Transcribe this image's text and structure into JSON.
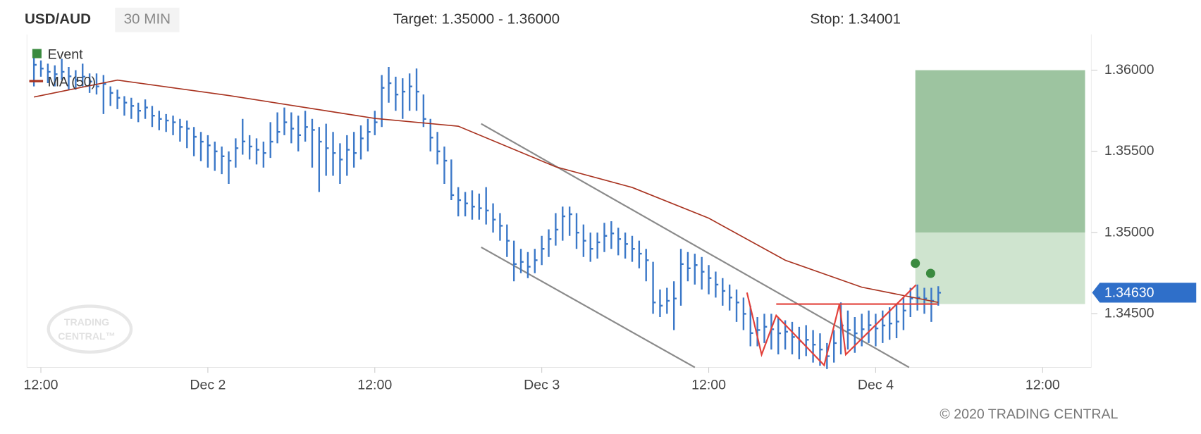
{
  "chart_data": {
    "type": "ohlc",
    "title": "USD/AUD",
    "interval": "30 MIN",
    "target": "Target: 1.35000 - 1.36000",
    "stop": "Stop: 1.34001",
    "copyright": "© 2020 TRADING CENTRAL",
    "watermark": [
      "TRADING",
      "CENTRAL™"
    ],
    "legend": "top-left",
    "grid": false,
    "xlim": [
      -1,
      152
    ],
    "xticks": [
      {
        "value": 1,
        "label": "12:00"
      },
      {
        "value": 25,
        "label": "Dec 2"
      },
      {
        "value": 49,
        "label": "12:00"
      },
      {
        "value": 73,
        "label": "Dec 3"
      },
      {
        "value": 97,
        "label": "12:00"
      },
      {
        "value": 121,
        "label": "Dec 4"
      },
      {
        "value": 145,
        "label": "12:00"
      }
    ],
    "ylim": [
      1.3417,
      1.3622
    ],
    "yticks": [
      {
        "value": 1.36,
        "label": "1.36000"
      },
      {
        "value": 1.355,
        "label": "1.35500"
      },
      {
        "value": 1.35,
        "label": "1.35000"
      },
      {
        "value": 1.345,
        "label": "1.34500"
      }
    ],
    "bars": {
      "color": "#3b78c8",
      "high": [
        1.361,
        1.3606,
        1.3604,
        1.3603,
        1.3607,
        1.3602,
        1.36,
        1.3604,
        1.3598,
        1.3598,
        1.3597,
        1.359,
        1.3588,
        1.3584,
        1.3583,
        1.358,
        1.3582,
        1.3578,
        1.3575,
        1.3573,
        1.3572,
        1.357,
        1.3569,
        1.3565,
        1.3562,
        1.356,
        1.3556,
        1.3553,
        1.355,
        1.3558,
        1.357,
        1.356,
        1.3558,
        1.3556,
        1.3568,
        1.3574,
        1.3577,
        1.3574,
        1.3572,
        1.3575,
        1.357,
        1.3565,
        1.3567,
        1.3562,
        1.3555,
        1.356,
        1.3562,
        1.3566,
        1.357,
        1.3575,
        1.3597,
        1.3602,
        1.3596,
        1.3595,
        1.3598,
        1.3601,
        1.3585,
        1.357,
        1.3562,
        1.3553,
        1.3545,
        1.3528,
        1.3525,
        1.3526,
        1.3524,
        1.3528,
        1.3518,
        1.3512,
        1.3505,
        1.3495,
        1.349,
        1.3488,
        1.349,
        1.3498,
        1.3502,
        1.3512,
        1.3516,
        1.3516,
        1.3512,
        1.3505,
        1.35,
        1.35,
        1.3506,
        1.3507,
        1.3503,
        1.35,
        1.3498,
        1.3495,
        1.349,
        1.3482,
        1.3465,
        1.3466,
        1.347,
        1.349,
        1.3488,
        1.3487,
        1.3485,
        1.348,
        1.3476,
        1.3472,
        1.3468,
        1.3465,
        1.346,
        1.3455,
        1.3448,
        1.345,
        1.345,
        1.3448,
        1.3446,
        1.3445,
        1.3442,
        1.3443,
        1.344,
        1.3438,
        1.3432,
        1.344,
        1.3457,
        1.3452,
        1.3448,
        1.345,
        1.3452,
        1.345,
        1.3452,
        1.3454,
        1.3456,
        1.346,
        1.3466,
        1.3468,
        1.3466,
        1.3466,
        1.3467
      ],
      "low": [
        1.359,
        1.3596,
        1.3592,
        1.359,
        1.3594,
        1.3588,
        1.3588,
        1.359,
        1.3586,
        1.3585,
        1.3573,
        1.3578,
        1.3576,
        1.3572,
        1.357,
        1.3568,
        1.357,
        1.3565,
        1.3563,
        1.3562,
        1.356,
        1.3556,
        1.3552,
        1.3547,
        1.3544,
        1.354,
        1.3538,
        1.3536,
        1.353,
        1.354,
        1.3548,
        1.3545,
        1.3542,
        1.354,
        1.3546,
        1.3555,
        1.356,
        1.3555,
        1.355,
        1.3556,
        1.354,
        1.3525,
        1.3535,
        1.3535,
        1.353,
        1.3535,
        1.354,
        1.3545,
        1.355,
        1.356,
        1.3565,
        1.358,
        1.3575,
        1.357,
        1.3575,
        1.3575,
        1.3565,
        1.355,
        1.3542,
        1.353,
        1.352,
        1.351,
        1.351,
        1.3508,
        1.3508,
        1.3505,
        1.35,
        1.3495,
        1.3485,
        1.347,
        1.3475,
        1.3472,
        1.3475,
        1.348,
        1.3485,
        1.3492,
        1.3495,
        1.3498,
        1.349,
        1.3485,
        1.3482,
        1.3484,
        1.3488,
        1.349,
        1.3486,
        1.3484,
        1.3482,
        1.3478,
        1.347,
        1.345,
        1.3448,
        1.345,
        1.344,
        1.3455,
        1.347,
        1.3468,
        1.3465,
        1.3462,
        1.346,
        1.3455,
        1.3452,
        1.3445,
        1.344,
        1.343,
        1.343,
        1.3432,
        1.3428,
        1.3425,
        1.3428,
        1.3425,
        1.3422,
        1.3424,
        1.342,
        1.3418,
        1.3416,
        1.342,
        1.3425,
        1.3428,
        1.3426,
        1.343,
        1.3432,
        1.343,
        1.3432,
        1.3434,
        1.3435,
        1.344,
        1.3448,
        1.3452,
        1.345,
        1.3445,
        1.3455
      ],
      "close": [
        1.36033,
        1.3601,
        1.3599,
        1.35975,
        1.3599,
        1.35962,
        1.3594,
        1.3596,
        1.3593,
        1.359,
        1.35915,
        1.3586,
        1.3583,
        1.358,
        1.3578,
        1.3575,
        1.3577,
        1.3572,
        1.357,
        1.3569,
        1.35679,
        1.3565,
        1.3564,
        1.3559,
        1.3556,
        1.35537,
        1.355,
        1.3547,
        1.35443,
        1.3552,
        1.35561,
        1.3553,
        1.3551,
        1.3549,
        1.3556,
        1.3562,
        1.35679,
        1.3564,
        1.356,
        1.3565,
        1.35632,
        1.3556,
        1.3552,
        1.3549,
        1.3545,
        1.3551,
        1.3549,
        1.3558,
        1.3562,
        1.35679,
        1.35891,
        1.3592,
        1.3585,
        1.35868,
        1.359,
        1.35868,
        1.357,
        1.35585,
        1.355,
        1.35443,
        1.35231,
        1.352,
        1.3518,
        1.3516,
        1.3515,
        1.35136,
        1.3508,
        1.35042,
        1.3495,
        1.34806,
        1.3482,
        1.3479,
        1.3483,
        1.349,
        1.3496,
        1.35018,
        1.351,
        1.35113,
        1.35,
        1.3495,
        1.349,
        1.3494,
        1.3498,
        1.34995,
        1.3496,
        1.3493,
        1.349,
        1.3487,
        1.3483,
        1.3457,
        1.3455,
        1.3458,
        1.34594,
        1.34806,
        1.3478,
        1.348,
        1.34759,
        1.3472,
        1.3468,
        1.34641,
        1.346,
        1.3457,
        1.345,
        1.34381,
        1.344,
        1.3442,
        1.34405,
        1.3438,
        1.3439,
        1.34357,
        1.3433,
        1.3434,
        1.3431,
        1.3428,
        1.34239,
        1.3432,
        1.34428,
        1.344,
        1.3438,
        1.34405,
        1.3443,
        1.3441,
        1.34428,
        1.3444,
        1.34452,
        1.3452,
        1.34594,
        1.346,
        1.34594,
        1.3458,
        1.3463
      ]
    },
    "ma": {
      "name": "MA (50)",
      "color": "#a8321f",
      "x": [
        0,
        12,
        28,
        49,
        61,
        75,
        86,
        97,
        108,
        119,
        130
      ],
      "values": [
        1.35835,
        1.35939,
        1.35844,
        1.35703,
        1.35655,
        1.35405,
        1.35278,
        1.35089,
        1.3483,
        1.34664,
        1.3457
      ]
    },
    "events": {
      "name": "Event",
      "color": "#3a8a3f",
      "x": [
        126.7,
        128.9
      ],
      "values": [
        1.34811,
        1.34749
      ]
    },
    "channel": {
      "color": "#8a8a8a",
      "lines": [
        {
          "x": [
            64.3,
            125.8
          ],
          "values": [
            1.3567,
            1.3417
          ]
        },
        {
          "x": [
            64.3,
            95
          ],
          "values": [
            1.3491,
            1.3417
          ]
        }
      ]
    },
    "pattern": {
      "color": "#e2403a",
      "x": [
        102.5,
        104.6,
        106.7,
        113.6,
        115.8,
        116.7,
        126.8
      ],
      "values": [
        1.34631,
        1.34249,
        1.3449,
        1.34183,
        1.3456,
        1.34249,
        1.34678
      ]
    },
    "neckline": {
      "color": "#e2403a",
      "x": [
        106.7,
        129.9
      ],
      "values": [
        1.3456,
        1.3456
      ]
    },
    "zones": {
      "x": [
        126.7,
        151.1
      ],
      "areas": [
        {
          "from": 1.35,
          "to": 1.36,
          "color": "#9dc4a0"
        },
        {
          "from": 1.3456,
          "to": 1.35,
          "color": "#cfe4cf"
        }
      ]
    },
    "last": {
      "value": 1.3463,
      "label": "1.34630",
      "color": "#2f6fc9"
    }
  }
}
